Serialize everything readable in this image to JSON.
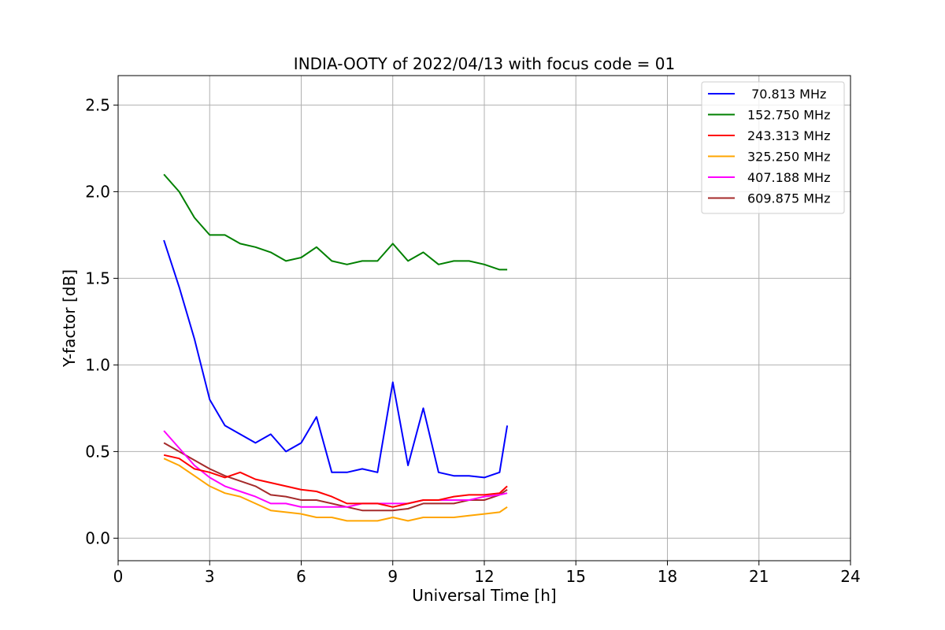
{
  "chart_data": {
    "type": "line",
    "title": "INDIA-OOTY of 2022/04/13 with focus code = 01",
    "xlabel": "Universal Time [h]",
    "ylabel": "Y-factor [dB]",
    "xlim": [
      0,
      24
    ],
    "ylim": [
      -0.13,
      2.67
    ],
    "xticks": [
      0,
      3,
      6,
      9,
      12,
      15,
      18,
      21,
      24
    ],
    "xtick_labels": [
      "0",
      "3",
      "6",
      "9",
      "12",
      "15",
      "18",
      "21",
      "24"
    ],
    "yticks": [
      0.0,
      0.5,
      1.0,
      1.5,
      2.0,
      2.5
    ],
    "ytick_labels": [
      "0.0",
      "0.5",
      "1.0",
      "1.5",
      "2.0",
      "2.5"
    ],
    "grid": true,
    "legend_position": "top-right",
    "x": [
      1.5,
      2.0,
      2.5,
      3.0,
      3.5,
      4.0,
      4.5,
      5.0,
      5.5,
      6.0,
      6.5,
      7.0,
      7.5,
      8.0,
      8.5,
      9.0,
      9.5,
      10.0,
      10.5,
      11.0,
      11.5,
      12.0,
      12.5,
      12.75
    ],
    "series": [
      {
        "name": "70.813 MHz",
        "label": " 70.813 MHz",
        "color": "#0000ff",
        "values": [
          1.72,
          1.45,
          1.15,
          0.8,
          0.65,
          0.6,
          0.55,
          0.6,
          0.5,
          0.55,
          0.7,
          0.38,
          0.38,
          0.4,
          0.38,
          0.9,
          0.42,
          0.75,
          0.38,
          0.36,
          0.36,
          0.35,
          0.38,
          0.65
        ]
      },
      {
        "name": "152.750 MHz",
        "label": "152.750 MHz",
        "color": "#008000",
        "values": [
          2.1,
          2.0,
          1.85,
          1.75,
          1.75,
          1.7,
          1.68,
          1.65,
          1.6,
          1.62,
          1.68,
          1.6,
          1.58,
          1.6,
          1.6,
          1.7,
          1.6,
          1.65,
          1.58,
          1.6,
          1.6,
          1.58,
          1.55,
          1.55
        ]
      },
      {
        "name": "243.313 MHz",
        "label": "243.313 MHz",
        "color": "#ff0000",
        "values": [
          0.48,
          0.46,
          0.4,
          0.38,
          0.35,
          0.38,
          0.34,
          0.32,
          0.3,
          0.28,
          0.27,
          0.24,
          0.2,
          0.2,
          0.2,
          0.18,
          0.2,
          0.22,
          0.22,
          0.24,
          0.25,
          0.25,
          0.26,
          0.3
        ]
      },
      {
        "name": "325.250 MHz",
        "label": "325.250 MHz",
        "color": "#ffa500",
        "values": [
          0.46,
          0.42,
          0.36,
          0.3,
          0.26,
          0.24,
          0.2,
          0.16,
          0.15,
          0.14,
          0.12,
          0.12,
          0.1,
          0.1,
          0.1,
          0.12,
          0.1,
          0.12,
          0.12,
          0.12,
          0.13,
          0.14,
          0.15,
          0.18
        ]
      },
      {
        "name": "407.188 MHz",
        "label": "407.188 MHz",
        "color": "#ff00ff",
        "values": [
          0.62,
          0.52,
          0.42,
          0.35,
          0.3,
          0.27,
          0.24,
          0.2,
          0.2,
          0.18,
          0.18,
          0.18,
          0.18,
          0.2,
          0.2,
          0.2,
          0.2,
          0.22,
          0.22,
          0.22,
          0.22,
          0.24,
          0.25,
          0.26
        ]
      },
      {
        "name": "609.875 MHz",
        "label": "609.875 MHz",
        "color": "#a52a2a",
        "values": [
          0.55,
          0.5,
          0.45,
          0.4,
          0.36,
          0.33,
          0.3,
          0.25,
          0.24,
          0.22,
          0.22,
          0.2,
          0.18,
          0.16,
          0.16,
          0.16,
          0.17,
          0.2,
          0.2,
          0.2,
          0.22,
          0.22,
          0.25,
          0.28
        ]
      }
    ]
  }
}
